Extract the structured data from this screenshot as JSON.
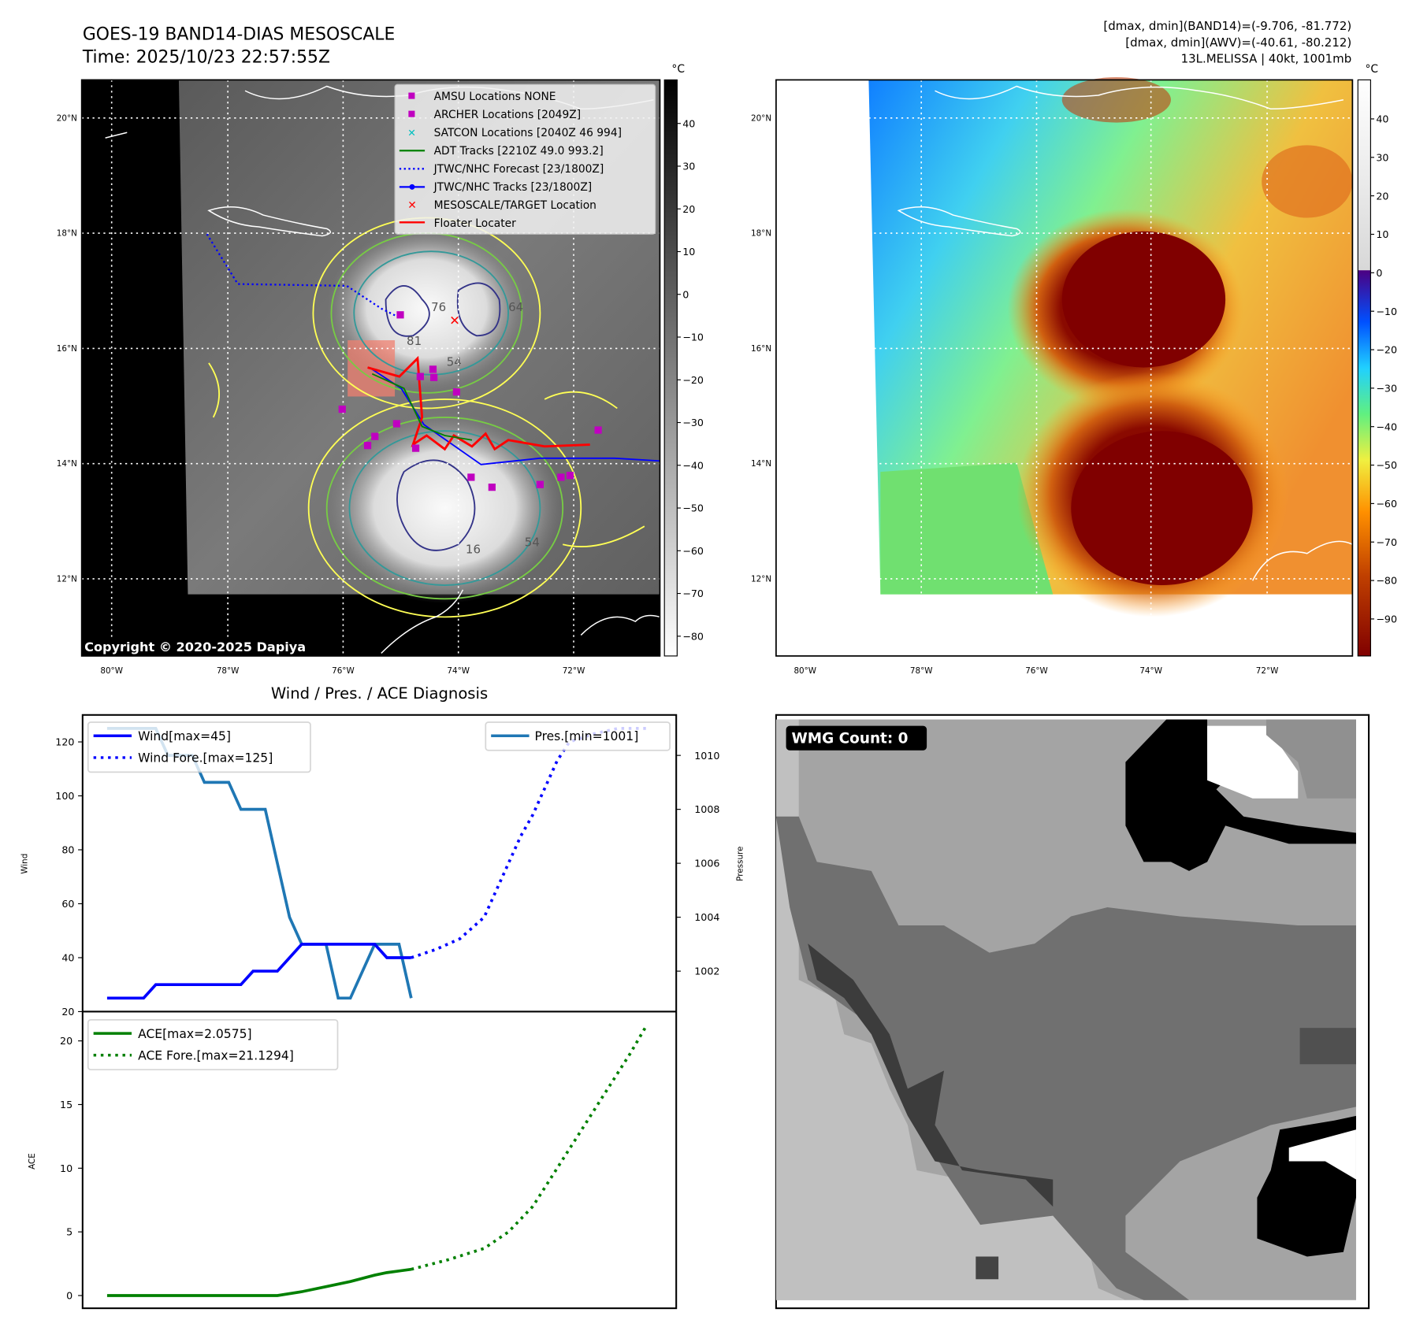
{
  "header": {
    "title": "GOES-19 BAND14-DIAS MESOSCALE",
    "time": "Time: 2025/10/23 22:57:55Z",
    "stats_band14": "[dmax, dmin](BAND14)=(-9.706, -81.772)",
    "stats_awv": "[dmax, dmin](AWV)=(-40.61, -80.212)",
    "storm": "13L.MELISSA | 40kt, 1001mb"
  },
  "maps": {
    "lat_labels": [
      "20°N",
      "18°N",
      "16°N",
      "14°N",
      "12°N"
    ],
    "lon_labels": [
      "80°W",
      "78°W",
      "76°W",
      "74°W",
      "72°W"
    ],
    "copyright": "Copyright © 2020-2025 Dapiya",
    "legend": [
      "AMSU Locations NONE",
      "ARCHER Locations [2049Z]",
      "SATCON Locations [2040Z 46 994]",
      "ADT Tracks [2210Z 49.0 993.2]",
      "JTWC/NHC Forecast [23/1800Z]",
      "JTWC/NHC Tracks [23/1800Z]",
      "MESOSCALE/TARGET Location",
      "Floater Locater"
    ],
    "contour_labels": [
      "76",
      "81",
      "54",
      "64",
      "16",
      "54"
    ],
    "colorbar_left": {
      "unit": "°C",
      "ticks": [
        "40",
        "30",
        "20",
        "10",
        "0",
        "−10",
        "−20",
        "−30",
        "−40",
        "−50",
        "−60",
        "−70",
        "−80"
      ]
    },
    "colorbar_right": {
      "unit": "°C",
      "ticks": [
        "40",
        "30",
        "20",
        "10",
        "0",
        "−10",
        "−20",
        "−30",
        "−40",
        "−50",
        "−60",
        "−70",
        "−80",
        "−90"
      ]
    },
    "wmg_label": "WMG Count: 0"
  },
  "colors": {
    "wind": "#0000ff",
    "pressure": "#1f77b4",
    "ace": "#008000",
    "archer": "#c000c0",
    "floater": "#ff0000"
  },
  "chart_data": [
    {
      "type": "line",
      "title": "Wind / Pres. / ACE Diagnosis",
      "ylabel": "Wind",
      "ylabel_right": "Pressure",
      "ylim": [
        20,
        130
      ],
      "ylim_right": [
        1000.5,
        1011.5
      ],
      "yticks": [
        20,
        40,
        60,
        80,
        100,
        120
      ],
      "yticks_right": [
        1002,
        1004,
        1006,
        1008,
        1010
      ],
      "series": [
        {
          "name": "Wind[max=45]",
          "axis": "left",
          "style": "solid",
          "x": [
            0,
            1,
            2,
            3,
            4,
            5,
            6,
            7,
            8,
            9,
            10,
            11,
            12,
            13,
            14,
            15,
            16,
            17,
            18,
            19,
            20,
            21,
            22,
            23,
            24,
            25
          ],
          "values": [
            25,
            25,
            25,
            25,
            30,
            30,
            30,
            30,
            30,
            30,
            30,
            30,
            35,
            35,
            35,
            40,
            45,
            45,
            45,
            45,
            45,
            45,
            45,
            40,
            40,
            40
          ]
        },
        {
          "name": "Wind Fore.[max=125]",
          "axis": "left",
          "style": "dotted",
          "x": [
            25,
            27,
            29,
            31,
            32,
            33,
            34,
            35,
            36,
            37,
            38,
            40,
            42,
            44.3
          ],
          "values": [
            40,
            43,
            47,
            55,
            65,
            75,
            85,
            93,
            103,
            113,
            120,
            123,
            125,
            125
          ]
        },
        {
          "name": "Pres.[min=1001]",
          "axis": "right",
          "style": "solid",
          "x": [
            0,
            1,
            2,
            3,
            4,
            5,
            6,
            7,
            8,
            9,
            10,
            11,
            12,
            13,
            14,
            15,
            16,
            17,
            18,
            19,
            20,
            21,
            22,
            23,
            24,
            25
          ],
          "values": [
            1011,
            1011,
            1011,
            1011,
            1011,
            1010,
            1010,
            1010,
            1009,
            1009,
            1009,
            1008,
            1008,
            1008,
            1006,
            1004,
            1003,
            1003,
            1003,
            1001,
            1001,
            1002,
            1003,
            1003,
            1003,
            1001
          ]
        }
      ]
    },
    {
      "type": "line",
      "ylabel": "ACE",
      "ylim": [
        -1,
        22.3
      ],
      "yticks": [
        0,
        5,
        10,
        15,
        20
      ],
      "series": [
        {
          "name": "ACE[max=2.0575]",
          "style": "solid",
          "x": [
            0,
            14,
            16,
            18,
            20,
            22,
            23,
            25
          ],
          "values": [
            0,
            0,
            0.3,
            0.7,
            1.1,
            1.6,
            1.8,
            2.0575
          ]
        },
        {
          "name": "ACE Fore.[max=21.1294]",
          "style": "dotted",
          "x": [
            25,
            28,
            31,
            33,
            35,
            37,
            39,
            41,
            43,
            44.3
          ],
          "values": [
            2.0575,
            2.8,
            3.7,
            5,
            7,
            10,
            13,
            16,
            19,
            21.1294
          ]
        }
      ]
    }
  ]
}
